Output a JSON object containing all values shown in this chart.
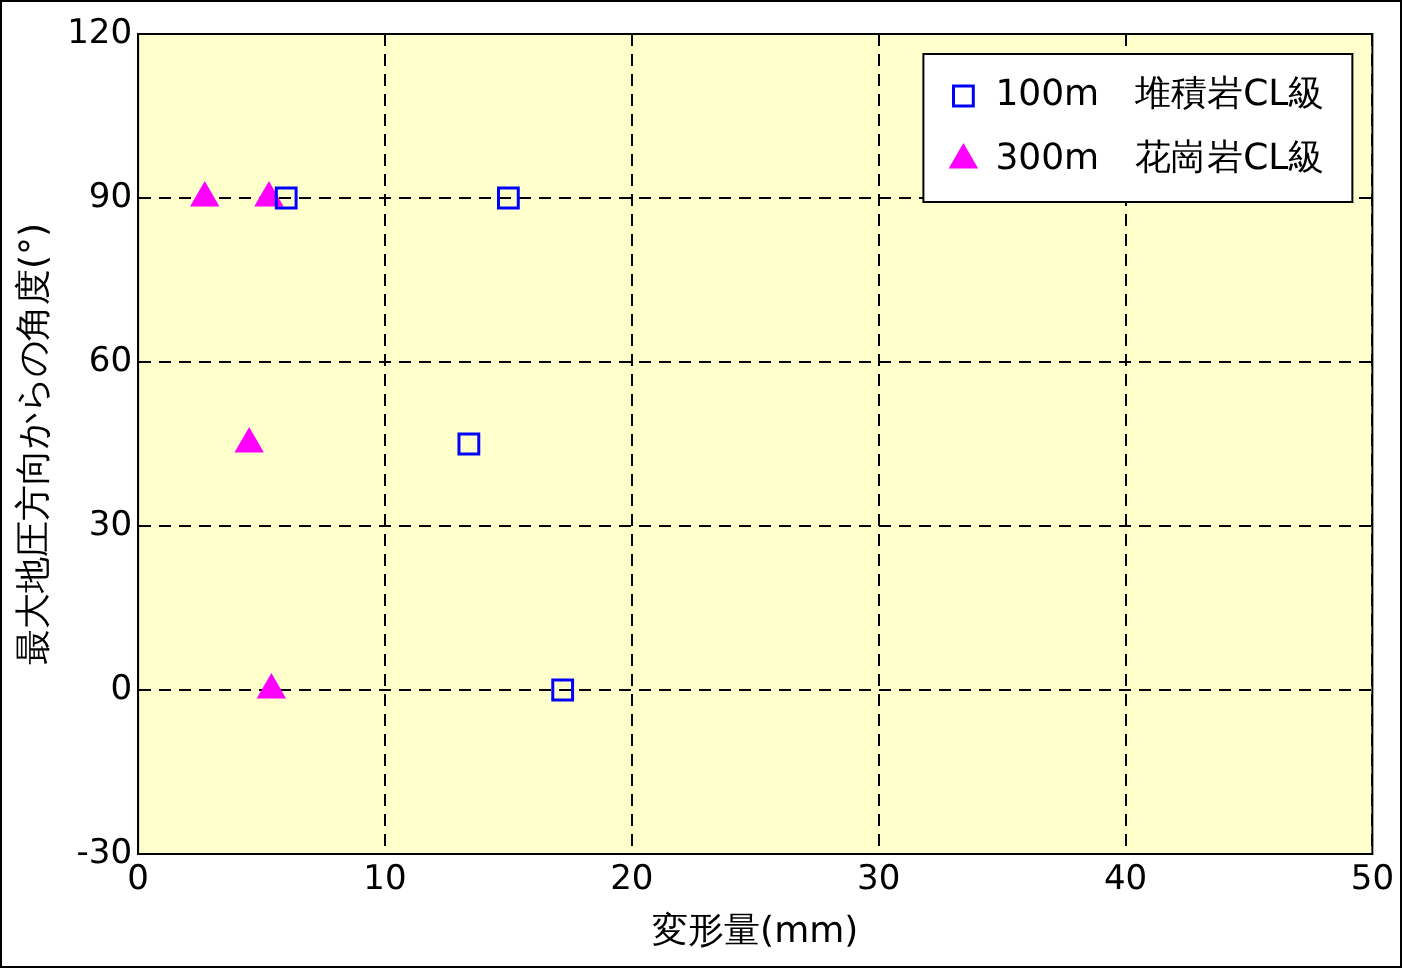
{
  "chart_data": {
    "type": "scatter",
    "xlabel": "変形量(mm)",
    "ylabel": "最大地圧方向からの角度(°)",
    "xlim": [
      0,
      50
    ],
    "xticks": [
      0,
      10,
      20,
      30,
      40,
      50
    ],
    "ylim": [
      -30,
      120
    ],
    "yticks": [
      -30,
      0,
      30,
      60,
      90,
      120
    ],
    "grid": true,
    "legend": "top right",
    "series": [
      {
        "name": "100m　堆積岩CL級",
        "color": "#0000ff",
        "marker": "square",
        "x": [
          6.0,
          15.0,
          13.4,
          17.2
        ],
        "values": [
          90,
          90,
          45,
          0
        ]
      },
      {
        "name": "300m　花崗岩CL級",
        "color": "#ff00ff",
        "marker": "triangle",
        "x": [
          2.7,
          5.3,
          4.5,
          5.4
        ],
        "values": [
          90,
          90,
          45,
          0
        ]
      }
    ]
  }
}
